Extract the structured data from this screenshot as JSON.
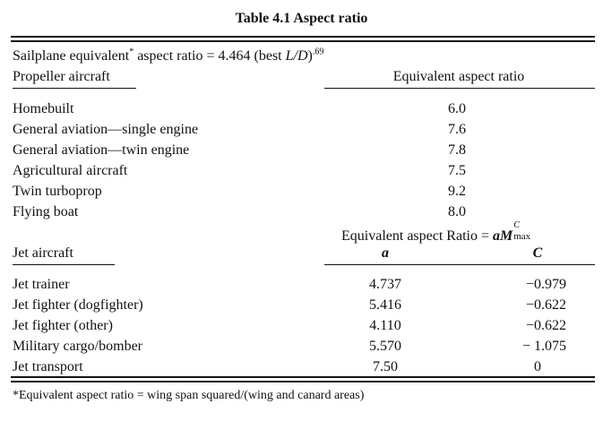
{
  "table": {
    "title": "Table 4.1   Aspect ratio",
    "sailplane": {
      "prefix": "Sailplane equivalent",
      "asterisk": "*",
      "mid": " aspect ratio = 4.464 (best ",
      "ld": "L/D",
      "close": ")",
      "exponent": ".69"
    },
    "propeller": {
      "heading": "Propeller aircraft",
      "col_heading": "Equivalent aspect ratio",
      "rows": [
        {
          "name": "Homebuilt",
          "value": "6.0"
        },
        {
          "name": "General aviation—single engine",
          "value": "7.6"
        },
        {
          "name": "General aviation—twin engine",
          "value": "7.8"
        },
        {
          "name": "Agricultural aircraft",
          "value": "7.5"
        },
        {
          "name": "Twin turboprop",
          "value": "9.2"
        },
        {
          "name": "Flying boat",
          "value": "8.0"
        }
      ]
    },
    "jet": {
      "heading": "Jet aircraft",
      "formula_text": "Equivalent aspect Ratio = ",
      "formula_a": "a",
      "formula_M": "M",
      "formula_sup": "C",
      "formula_sub": "max",
      "col_a": "a",
      "col_c": "C",
      "rows": [
        {
          "name": "Jet trainer",
          "a": "4.737",
          "c": "−0.979"
        },
        {
          "name": "Jet fighter (dogfighter)",
          "a": "5.416",
          "c": "−0.622"
        },
        {
          "name": "Jet fighter (other)",
          "a": "4.110",
          "c": "−0.622"
        },
        {
          "name": "Military cargo/bomber",
          "a": "5.570",
          "c": "− 1.075"
        },
        {
          "name": "Jet transport",
          "a": "7.50",
          "c": "0"
        }
      ]
    },
    "footnote": "*Equivalent aspect ratio = wing span squared/(wing and canard areas)"
  }
}
